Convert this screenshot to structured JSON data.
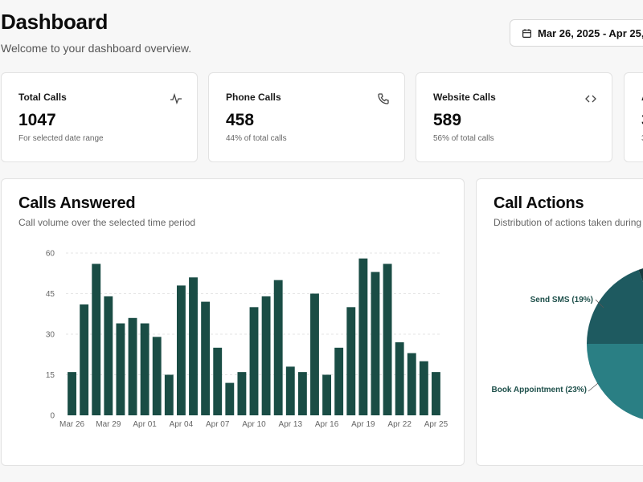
{
  "header": {
    "title": "Dashboard",
    "subtitle": "Welcome to your dashboard overview.",
    "date_range": "Mar 26, 2025 - Apr 25,"
  },
  "stats": [
    {
      "label": "Total Calls",
      "value": "1047",
      "note": "For selected date range",
      "icon": "activity-icon"
    },
    {
      "label": "Phone Calls",
      "value": "458",
      "note": "44% of total calls",
      "icon": "phone-icon"
    },
    {
      "label": "Website Calls",
      "value": "589",
      "note": "56% of total calls",
      "icon": "code-icon"
    },
    {
      "label": "A",
      "value": "3",
      "note": "3",
      "icon": ""
    }
  ],
  "calls_answered": {
    "title": "Calls Answered",
    "subtitle": "Call volume over the selected time period"
  },
  "call_actions": {
    "title": "Call Actions",
    "subtitle": "Distribution of actions taken during"
  },
  "colors": {
    "bar": "#1a4d45",
    "pie": [
      "#1e5a60",
      "#2a7f84",
      "#2f8f94",
      "#1d4f52",
      "#163b3f"
    ]
  },
  "chart_data": [
    {
      "type": "bar",
      "title": "Calls Answered",
      "ylim": [
        0,
        60
      ],
      "yticks": [
        "0",
        "15",
        "30",
        "45",
        "60"
      ],
      "xtick_labels": [
        "Mar 26",
        "Mar 29",
        "Apr 01",
        "Apr 04",
        "Apr 07",
        "Apr 10",
        "Apr 13",
        "Apr 16",
        "Apr 19",
        "Apr 22",
        "Apr 25"
      ],
      "values": [
        16,
        41,
        56,
        44,
        34,
        36,
        34,
        29,
        15,
        48,
        51,
        42,
        25,
        12,
        16,
        40,
        44,
        50,
        18,
        16,
        45,
        15,
        25,
        40,
        58,
        53,
        56,
        27,
        23,
        20,
        16
      ],
      "grid": true
    },
    {
      "type": "pie",
      "title": "Call Actions",
      "slices": [
        {
          "label": "Send SMS (19%)",
          "value": 19
        },
        {
          "label": "Book Appointment (23%)",
          "value": 23
        }
      ]
    }
  ]
}
